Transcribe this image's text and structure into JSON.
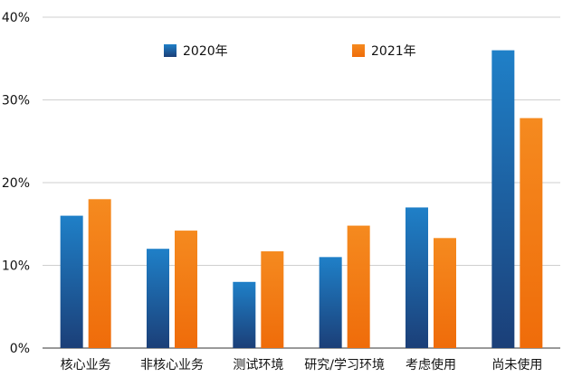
{
  "chart_data": {
    "type": "bar",
    "title": "",
    "xlabel": "",
    "ylabel": "",
    "ylim": [
      0,
      40
    ],
    "y_ticks": [
      0,
      10,
      20,
      30,
      40
    ],
    "y_tick_labels": [
      "0%",
      "10%",
      "20%",
      "30%",
      "40%"
    ],
    "grid": true,
    "legend_position": "top",
    "categories": [
      "核心业务",
      "非核心业务",
      "测试环境",
      "研究/学习环境",
      "考虑使用",
      "尚未使用"
    ],
    "series": [
      {
        "name": "2020年",
        "color": "#1a6fb8",
        "values": [
          16,
          12,
          8,
          11,
          17,
          36
        ]
      },
      {
        "name": "2021年",
        "color": "#f17d14",
        "values": [
          18,
          14.2,
          11.7,
          14.8,
          13.3,
          27.8
        ]
      }
    ]
  }
}
